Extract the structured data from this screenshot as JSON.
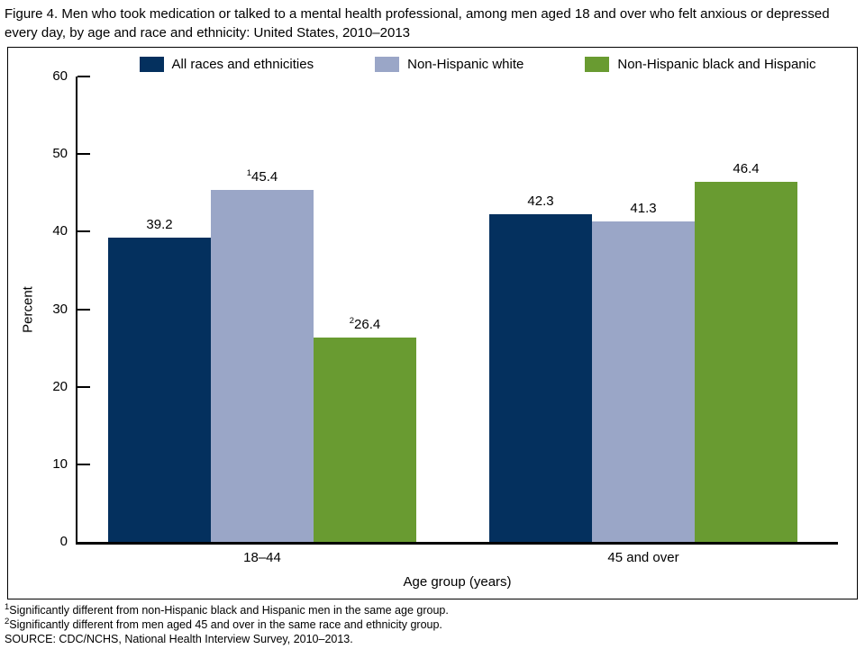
{
  "figure": {
    "title": "Figure 4. Men who took medication or talked to a mental health professional, among men aged 18 and over who felt anxious or depressed every day, by age and race and ethnicity: United States, 2010–2013"
  },
  "chart_data": {
    "type": "bar",
    "title": "Figure 4. Men who took medication or talked to a mental health professional, among men aged 18 and over who felt anxious or depressed every day, by age and race and ethnicity: United States, 2010–2013",
    "categories": [
      "18–44",
      "45 and over"
    ],
    "series": [
      {
        "name": "All races and ethnicities",
        "color": "#04305e",
        "values": [
          39.2,
          42.3
        ],
        "value_labels": [
          {
            "sup": "",
            "text": "39.2"
          },
          {
            "sup": "",
            "text": "42.3"
          }
        ]
      },
      {
        "name": "Non-Hispanic white",
        "color": "#9aa6c7",
        "values": [
          45.4,
          41.3
        ],
        "value_labels": [
          {
            "sup": "1",
            "text": "45.4"
          },
          {
            "sup": "",
            "text": "41.3"
          }
        ]
      },
      {
        "name": "Non-Hispanic black and Hispanic",
        "color": "#699b31",
        "values": [
          26.4,
          46.4
        ],
        "value_labels": [
          {
            "sup": "2",
            "text": "26.4"
          },
          {
            "sup": "",
            "text": "46.4"
          }
        ]
      }
    ],
    "xlabel": "Age group (years)",
    "ylabel": "Percent",
    "ylim": [
      0,
      60
    ],
    "yticks": [
      0,
      10,
      20,
      30,
      40,
      50,
      60
    ],
    "legend_position": "top",
    "grid": false
  },
  "footnotes": [
    {
      "sup": "1",
      "text": "Significantly different from non-Hispanic black and Hispanic men in the same age group."
    },
    {
      "sup": "2",
      "text": "Significantly different from men aged 45 and over in the same race and ethnicity group."
    },
    {
      "sup": "",
      "text": "SOURCE: CDC/NCHS, National Health Interview Survey, 2010–2013."
    }
  ]
}
